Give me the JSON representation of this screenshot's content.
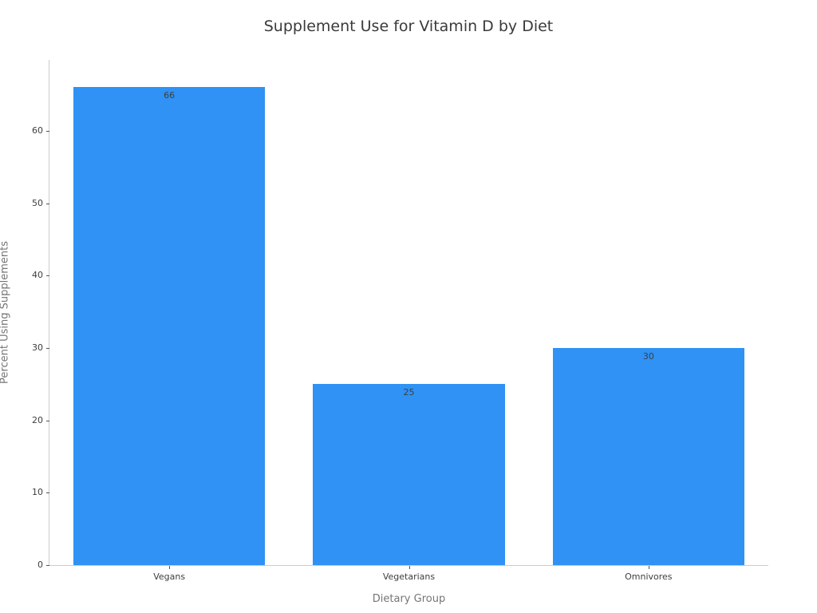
{
  "chart_data": {
    "type": "bar",
    "title": "Supplement Use for Vitamin D by Diet",
    "xlabel": "Dietary Group",
    "ylabel": "Percent Using Supplements",
    "categories": [
      "Vegans",
      "Vegetarians",
      "Omnivores"
    ],
    "values": [
      66,
      25,
      30
    ],
    "bar_labels": [
      "66",
      "25",
      "30"
    ],
    "yticks": [
      0,
      10,
      20,
      30,
      40,
      50,
      60
    ],
    "ylim": [
      0,
      69.8
    ],
    "grid": false,
    "legend": "none",
    "bar_label_position": "inside-top"
  },
  "colors": {
    "bar": "#2f92f4",
    "spine": "#cccccc",
    "tick_mark": "#555555",
    "tick_label": "#3d3d3d",
    "bar_value_label": "#3f3f3f",
    "axis_title": "#757575",
    "title": "#3a3a3a",
    "background": "#ffffff"
  }
}
